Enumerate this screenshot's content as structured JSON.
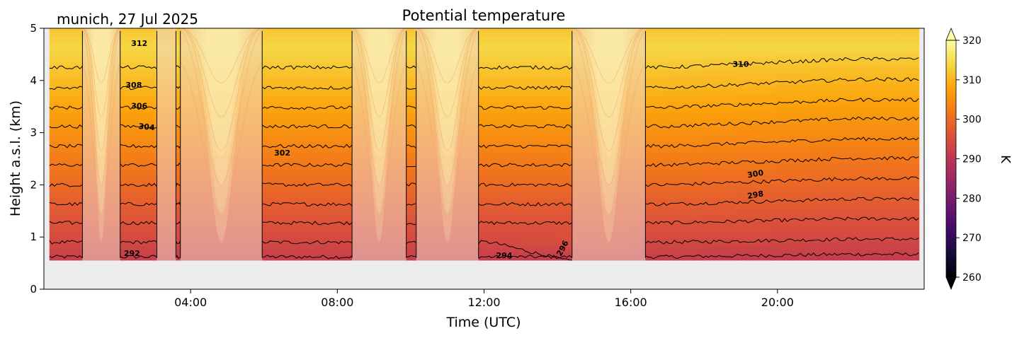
{
  "chart_data": {
    "type": "heatmap",
    "title": "Potential temperature",
    "subtitle": "munich, 27 Jul 2025",
    "xlabel": "Time (UTC)",
    "ylabel": "Height a.s.l. (km)",
    "x_ticks": [
      {
        "value": 4,
        "label": "04:00"
      },
      {
        "value": 8,
        "label": "08:00"
      },
      {
        "value": 12,
        "label": "12:00"
      },
      {
        "value": 16,
        "label": "16:00"
      },
      {
        "value": 20,
        "label": "20:00"
      }
    ],
    "y_ticks": [
      0,
      1,
      2,
      3,
      4,
      5
    ],
    "xlim": [
      0,
      24
    ],
    "ylim": [
      0,
      5
    ],
    "ground_height_km": 0.55,
    "contour_levels": [
      292,
      294,
      296,
      298,
      300,
      302,
      304,
      306,
      308,
      310,
      312
    ],
    "contour_labels": [
      {
        "text": "312",
        "time": 2.6,
        "height": 4.7
      },
      {
        "text": "308",
        "time": 2.45,
        "height": 3.9
      },
      {
        "text": "306",
        "time": 2.6,
        "height": 3.5
      },
      {
        "text": "304",
        "time": 2.8,
        "height": 3.1
      },
      {
        "text": "302",
        "time": 6.5,
        "height": 2.6
      },
      {
        "text": "292",
        "time": 2.4,
        "height": 0.68
      },
      {
        "text": "294",
        "time": 12.55,
        "height": 0.64
      },
      {
        "text": "296",
        "time": 14.15,
        "height": 0.78
      },
      {
        "text": "310",
        "time": 19.0,
        "height": 4.3
      },
      {
        "text": "300",
        "time": 19.4,
        "height": 2.2
      },
      {
        "text": "298",
        "time": 19.4,
        "height": 1.8
      }
    ],
    "masked_time_intervals": [
      [
        1.05,
        2.08
      ],
      [
        3.08,
        3.6
      ],
      [
        3.72,
        5.95
      ],
      [
        8.4,
        9.88
      ],
      [
        10.15,
        11.85
      ],
      [
        14.4,
        16.4
      ]
    ],
    "colorbar": {
      "label": "K",
      "min": 260,
      "max": 320,
      "ticks": [
        260,
        270,
        280,
        290,
        300,
        310,
        320
      ],
      "extend": "both",
      "colormap": "inferno"
    },
    "missing_data_color": "#ececec"
  }
}
